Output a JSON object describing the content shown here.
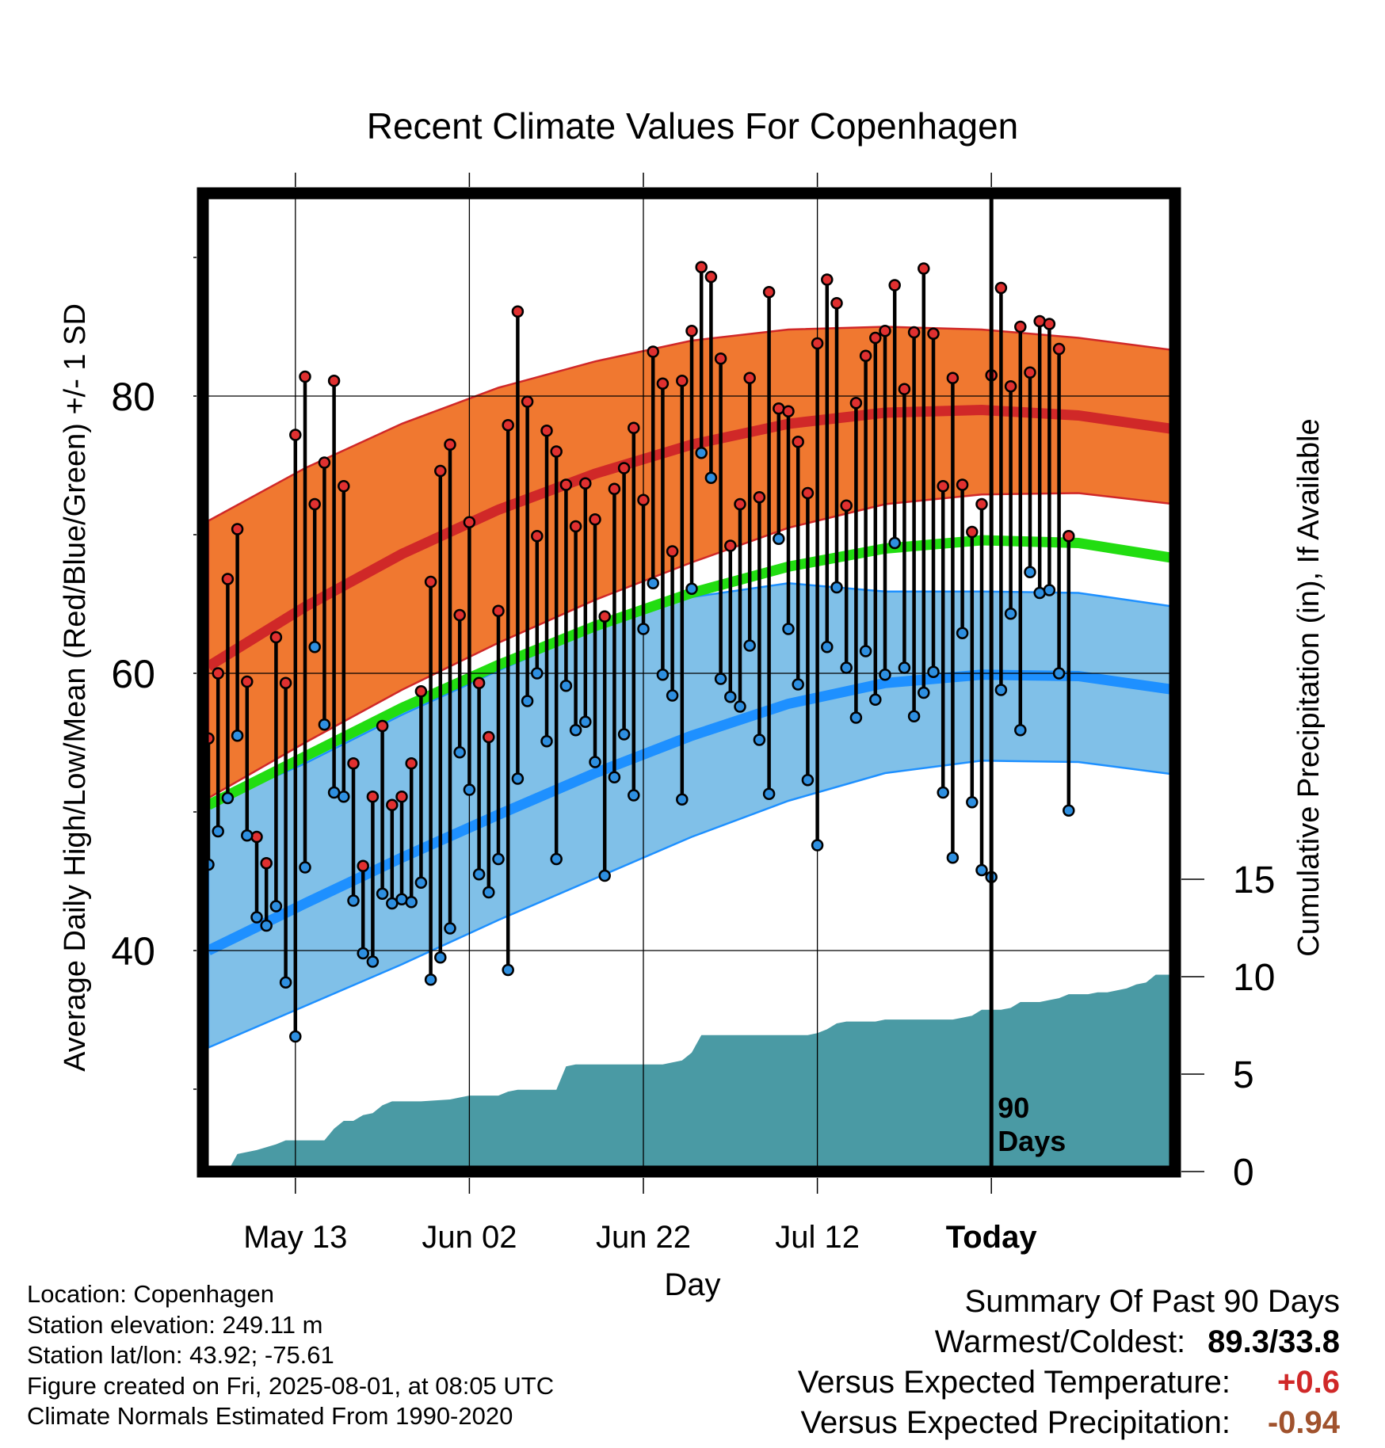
{
  "chart_data": {
    "type": "line",
    "title": "Recent Climate Values For Copenhagen",
    "xlabel": "Day",
    "ylabel": "Average Daily High/Low/Mean (Red/Blue/Green) +/- 1 SD",
    "y2label": "Cumulative Precipitation (in), If Available",
    "x_ticks": [
      "May 13",
      "Jun 02",
      "Jun 22",
      "Jul 12",
      "Today"
    ],
    "y_ticks": [
      40,
      60,
      80
    ],
    "y2_ticks": [
      0,
      5,
      10,
      15
    ],
    "ylim": [
      25,
      95
    ],
    "y2lim": [
      0,
      47
    ],
    "marker_label": "90 Days",
    "grid": true,
    "colors": {
      "high_band": "#F07830",
      "high_line": "#D02828",
      "low_band": "#80C0E8",
      "low_line": "#1E90FF",
      "mean_line": "#22DD11",
      "precip": "#4A9AA4",
      "high_dot": "#E03030",
      "low_dot": "#2E8FE0"
    },
    "normals": {
      "day": [
        0,
        10,
        20,
        30,
        40,
        50,
        60,
        70,
        80,
        90,
        100
      ],
      "high_mean": [
        60.5,
        64.8,
        68.6,
        71.8,
        74.4,
        76.5,
        78.0,
        78.8,
        79.0,
        78.6,
        77.6
      ],
      "high_upper": [
        71.0,
        74.8,
        78.0,
        80.6,
        82.5,
        84.0,
        84.8,
        85.0,
        84.8,
        84.2,
        83.3
      ],
      "high_lower": [
        51.0,
        55.0,
        58.8,
        62.2,
        65.3,
        68.0,
        70.5,
        72.2,
        72.9,
        73.0,
        72.2
      ],
      "mean": [
        50.5,
        54.0,
        57.5,
        60.6,
        63.4,
        65.8,
        67.7,
        69.0,
        69.6,
        69.4,
        68.3
      ],
      "low_mean": [
        40.0,
        43.4,
        46.7,
        49.8,
        52.8,
        55.5,
        57.8,
        59.3,
        59.9,
        59.8,
        58.8
      ],
      "low_upper": [
        50.5,
        53.5,
        57.0,
        60.2,
        63.2,
        65.5,
        66.5,
        65.9,
        65.9,
        65.8,
        64.8
      ],
      "low_lower": [
        33.0,
        36.0,
        39.0,
        42.2,
        45.2,
        48.2,
        50.8,
        52.8,
        53.7,
        53.6,
        52.7
      ]
    },
    "series": [
      {
        "name": "High",
        "values": [
          55.3,
          60.0,
          66.8,
          70.4,
          59.4,
          48.2,
          46.3,
          62.6,
          59.3,
          77.2,
          81.4,
          72.2,
          75.2,
          81.1,
          73.5,
          53.5,
          46.1,
          51.1,
          56.2,
          50.5,
          51.1,
          53.5,
          58.7,
          66.6,
          74.6,
          76.5,
          64.2,
          70.9,
          59.3,
          55.4,
          64.5,
          77.9,
          86.1,
          79.6,
          69.9,
          77.5,
          76.0,
          73.6,
          70.6,
          73.7,
          71.1,
          64.1,
          73.3,
          74.8,
          77.7,
          72.5,
          83.2,
          80.9,
          68.8,
          81.1,
          84.7,
          89.3,
          88.6,
          82.7,
          69.2,
          72.2,
          81.3,
          72.7,
          87.5,
          79.1,
          78.9,
          76.7,
          73.0,
          83.8,
          88.4,
          86.7,
          72.1,
          79.5,
          82.9,
          84.2,
          84.7,
          88.0,
          80.5,
          84.6,
          89.2,
          84.5,
          73.5,
          81.3,
          73.6,
          70.2,
          72.2,
          81.5,
          87.8,
          80.7,
          85.0,
          81.7,
          85.4,
          85.2,
          83.4,
          69.9
        ]
      },
      {
        "name": "Low",
        "values": [
          46.2,
          48.6,
          51.0,
          55.5,
          48.3,
          42.4,
          41.8,
          43.2,
          37.7,
          33.8,
          46.0,
          61.9,
          56.3,
          51.4,
          51.1,
          43.6,
          39.8,
          39.2,
          44.1,
          43.4,
          43.7,
          43.5,
          44.9,
          37.9,
          39.5,
          41.6,
          54.3,
          51.6,
          45.5,
          44.2,
          46.6,
          38.6,
          52.4,
          58.0,
          60.0,
          55.1,
          46.6,
          59.1,
          55.9,
          56.5,
          53.6,
          45.4,
          52.5,
          55.6,
          51.2,
          63.2,
          66.5,
          59.9,
          58.4,
          50.9,
          66.1,
          75.9,
          74.1,
          59.6,
          58.3,
          57.6,
          62.0,
          55.2,
          51.3,
          69.7,
          63.2,
          59.2,
          52.3,
          47.6,
          61.9,
          66.2,
          60.4,
          56.8,
          61.6,
          58.1,
          59.9,
          69.4,
          60.4,
          56.9,
          58.6,
          60.1,
          51.4,
          46.7,
          62.9,
          50.7,
          45.8,
          45.3,
          58.8,
          64.3,
          55.9,
          67.3,
          65.8,
          66.0,
          60.0,
          50.1
        ]
      }
    ],
    "precip_cumulative": {
      "day": [
        0,
        2,
        3,
        5,
        7,
        8,
        9,
        12,
        13,
        14,
        15,
        16,
        17,
        18,
        19,
        20,
        21,
        22,
        25,
        26,
        27,
        28,
        29,
        30,
        31,
        32,
        33,
        34,
        35,
        36,
        37,
        38,
        39,
        40,
        41,
        42,
        43,
        44,
        45,
        46,
        47,
        48,
        49,
        50,
        51,
        52,
        53,
        54,
        55,
        56,
        57,
        58,
        59,
        60,
        61,
        62,
        63,
        64,
        65,
        66,
        67,
        68,
        69,
        70,
        71,
        72,
        73,
        74,
        75,
        76,
        77,
        78,
        79,
        80,
        81,
        82,
        83,
        84,
        85,
        86,
        87,
        88,
        89,
        90,
        91,
        92,
        93,
        94,
        95,
        96,
        97,
        98,
        99,
        100
      ],
      "values": [
        0,
        0,
        0.9,
        1.1,
        1.4,
        1.6,
        1.6,
        1.6,
        2.2,
        2.6,
        2.6,
        2.9,
        3.0,
        3.4,
        3.6,
        3.6,
        3.6,
        3.6,
        3.7,
        3.8,
        3.9,
        3.9,
        3.9,
        3.9,
        4.1,
        4.2,
        4.2,
        4.2,
        4.2,
        4.2,
        5.4,
        5.5,
        5.5,
        5.5,
        5.5,
        5.5,
        5.5,
        5.5,
        5.5,
        5.5,
        5.5,
        5.6,
        5.7,
        6.1,
        7.0,
        7.0,
        7.0,
        7.0,
        7.0,
        7.0,
        7.0,
        7.0,
        7.0,
        7.0,
        7.0,
        7.0,
        7.1,
        7.3,
        7.6,
        7.7,
        7.7,
        7.7,
        7.7,
        7.8,
        7.8,
        7.8,
        7.8,
        7.8,
        7.8,
        7.8,
        7.8,
        7.9,
        8.0,
        8.3,
        8.3,
        8.3,
        8.4,
        8.7,
        8.7,
        8.7,
        8.8,
        8.9,
        9.1,
        9.1,
        9.1,
        9.2,
        9.2,
        9.3,
        9.4,
        9.6,
        9.7,
        10.1,
        10.1,
        10.1
      ]
    }
  },
  "info": {
    "location": "Location: Copenhagen",
    "elevation": "Station elevation: 249.11 m",
    "latlon": "Station lat/lon: 43.92; -75.61",
    "created": "Figure created on Fri, 2025-08-01, at 08:05 UTC",
    "normals": "Climate Normals Estimated From 1990-2020"
  },
  "summary": {
    "heading": "Summary Of Past 90 Days",
    "warm_cold_label": "Warmest/Coldest:",
    "warm_cold_value": "89.3/33.8",
    "temp_label": "Versus Expected Temperature:",
    "temp_value": "+0.6",
    "temp_color": "#D02828",
    "precip_label": "Versus Expected Precipitation:",
    "precip_value": "-0.94",
    "precip_color": "#A0522D"
  }
}
